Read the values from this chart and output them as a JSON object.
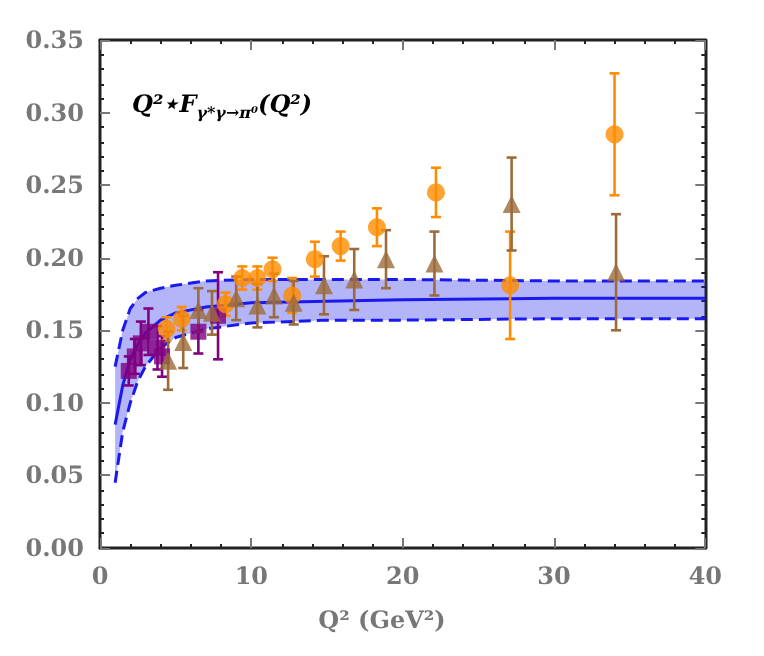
{
  "chart_data": {
    "type": "scatter",
    "xlabel": "Q² (GeV²)",
    "annotations": [
      "Q²⋆F$_{γ*γ→π⁰}$(Q²)"
    ],
    "xlim": [
      0,
      40
    ],
    "xticks": [
      0,
      10,
      20,
      30,
      40
    ],
    "ylim": [
      0,
      0.35
    ],
    "yticks": [
      {
        "value": 0,
        "label": "0.00"
      },
      0.05,
      {
        "value": 0.1,
        "label": "0.10"
      },
      0.15,
      {
        "value": 0.2,
        "label": "0.20"
      },
      0.25,
      {
        "value": 0.3,
        "label": "0.30"
      },
      0.35
    ],
    "grid": false,
    "series": [
      {
        "type": "line",
        "color": "#1a1aee",
        "marker": "none",
        "line_style": "dashed",
        "x": [
          1,
          1.5,
          2,
          2.5,
          3,
          4,
          5,
          7,
          10,
          15,
          20,
          30,
          40
        ],
        "values": [
          0.045,
          0.08,
          0.1,
          0.115,
          0.125,
          0.138,
          0.145,
          0.151,
          0.155,
          0.157,
          0.157,
          0.158,
          0.158
        ]
      },
      {
        "type": "line",
        "color": "#1a1aee",
        "marker": "none",
        "line_style": "dashed",
        "x": [
          1,
          1.5,
          2,
          2.5,
          3,
          4,
          5,
          7,
          10,
          15,
          20,
          30,
          40
        ],
        "values": [
          0.125,
          0.15,
          0.165,
          0.172,
          0.176,
          0.179,
          0.181,
          0.184,
          0.185,
          0.185,
          0.185,
          0.184,
          0.184
        ]
      },
      {
        "type": "line",
        "color": "#1a1aee",
        "marker": "none",
        "line_style": "solid",
        "x": [
          1,
          1.5,
          2,
          2.5,
          3,
          4,
          5,
          7,
          10,
          15,
          20,
          30,
          40
        ],
        "values": [
          0.085,
          0.112,
          0.13,
          0.14,
          0.148,
          0.157,
          0.162,
          0.166,
          0.169,
          0.17,
          0.171,
          0.172,
          0.172
        ],
        "lower": [
          0.045,
          0.08,
          0.1,
          0.115,
          0.125,
          0.138,
          0.145,
          0.151,
          0.155,
          0.157,
          0.157,
          0.158,
          0.158
        ],
        "upper": [
          0.125,
          0.15,
          0.165,
          0.172,
          0.176,
          0.179,
          0.181,
          0.184,
          0.185,
          0.185,
          0.185,
          0.184,
          0.184
        ]
      },
      {
        "color": "#800080",
        "marker": "square",
        "x": [
          1.9,
          2.3,
          2.7,
          3.2,
          3.8,
          4.1,
          6.5,
          7.8
        ],
        "values": [
          0.122,
          0.132,
          0.141,
          0.149,
          0.138,
          0.132,
          0.149,
          0.16
        ],
        "errors": [
          0.01,
          0.012,
          0.015,
          0.016,
          0.015,
          0.014,
          0.015,
          0.03
        ]
      },
      {
        "color": "#ff8c00",
        "marker": "circle",
        "x": [
          4.4,
          5.4,
          8.3,
          9.4,
          10.4,
          11.4,
          12.7,
          14.2,
          15.9,
          18.3,
          22.2,
          27.1,
          34.0
        ],
        "values": [
          0.151,
          0.158,
          0.168,
          0.186,
          0.186,
          0.192,
          0.174,
          0.199,
          0.208,
          0.221,
          0.245,
          0.181,
          0.285
        ],
        "errors": [
          0.008,
          0.008,
          0.008,
          0.008,
          0.008,
          0.008,
          0.012,
          0.012,
          0.01,
          0.013,
          0.017,
          0.037,
          0.042
        ]
      },
      {
        "color": "#9c6b3c",
        "marker": "triangle",
        "x": [
          4.5,
          5.5,
          6.5,
          7.4,
          9.0,
          10.4,
          11.5,
          12.8,
          14.8,
          16.8,
          18.9,
          22.1,
          27.2,
          34.1
        ],
        "values": [
          0.129,
          0.142,
          0.164,
          0.162,
          0.172,
          0.167,
          0.174,
          0.169,
          0.181,
          0.185,
          0.199,
          0.196,
          0.237,
          0.19
        ],
        "errors": [
          0.02,
          0.018,
          0.015,
          0.015,
          0.015,
          0.015,
          0.015,
          0.015,
          0.02,
          0.021,
          0.02,
          0.022,
          0.032,
          0.04
        ]
      }
    ]
  }
}
